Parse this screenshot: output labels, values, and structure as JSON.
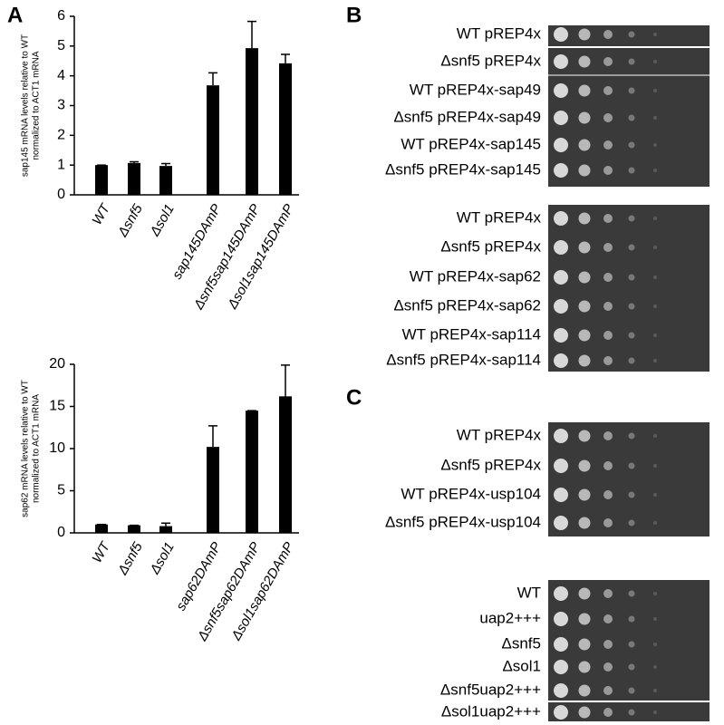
{
  "figure": {
    "panel_labels": [
      "A",
      "B",
      "C"
    ]
  },
  "chart_data": [
    {
      "type": "bar",
      "ylabel": [
        "sap145 mRNA levels relative to WT",
        "normalized to ACT1 mRNA"
      ],
      "categories": [
        "WT",
        "Δsnf5",
        "Δsol1",
        "sap145DAmP",
        "Δsnf5sap145DAmP",
        "Δsol1sap145DAmP"
      ],
      "values": [
        1,
        1.07,
        0.97,
        3.68,
        4.93,
        4.42
      ],
      "errors": [
        0,
        0.04,
        0.08,
        0.42,
        0.9,
        0.3
      ],
      "color": "#000000",
      "ylim": [
        0,
        6
      ],
      "yticks": [
        0,
        1,
        2,
        3,
        4,
        5,
        6
      ]
    },
    {
      "type": "bar",
      "ylabel": [
        "sap62 mRNA levels relative to WT",
        "normalized to ACT1 mRNA"
      ],
      "categories": [
        "WT",
        "Δsnf5",
        "Δsol1",
        "sap62DAmP",
        "Δsnf5sap62DAmP",
        "Δsol1sap62DAmP"
      ],
      "values": [
        1,
        0.9,
        0.8,
        10.2,
        14.5,
        16.2
      ],
      "errors": [
        0,
        0,
        0.35,
        2.5,
        0,
        3.7
      ],
      "color": "#000000",
      "ylim": [
        0,
        20
      ],
      "yticks": [
        0,
        5,
        10,
        15,
        20
      ]
    }
  ],
  "plates": [
    {
      "rows": [
        "WT pREP4x",
        "Δsnf5 pREP4x",
        "WT pREP4x-sap49",
        "Δsnf5 pREP4x-sap49",
        "WT pREP4x-sap145",
        "Δsnf5 pREP4x-sap145"
      ]
    },
    {
      "rows": [
        "WT pREP4x",
        "Δsnf5 pREP4x",
        "WT pREP4x-sap62",
        "Δsnf5 pREP4x-sap62",
        "WT pREP4x-sap114",
        "Δsnf5 pREP4x-sap114"
      ]
    },
    {
      "rows": [
        "WT pREP4x",
        "Δsnf5 pREP4x",
        "WT pREP4x-usp104",
        "Δsnf5 pREP4x-usp104"
      ]
    },
    {
      "rows": [
        "WT",
        "uap2+++",
        "Δsnf5",
        "Δsol1",
        "Δsnf5uap2+++",
        "Δsol1uap2+++"
      ]
    }
  ]
}
